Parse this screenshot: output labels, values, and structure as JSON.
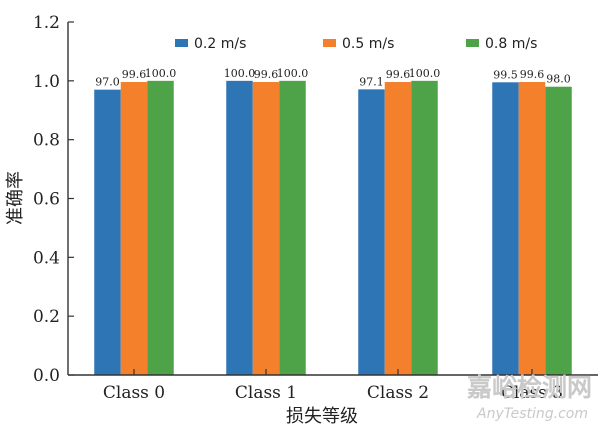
{
  "chart_data": {
    "type": "bar",
    "categories": [
      "Class 0",
      "Class 1",
      "Class 2",
      "Class 3"
    ],
    "series": [
      {
        "name": "0.2 m/s",
        "color": "#2e75b6",
        "values": [
          0.97,
          1.0,
          0.971,
          0.995
        ],
        "labels": [
          "97.0",
          "100.0",
          "97.1",
          "99.5"
        ]
      },
      {
        "name": "0.5 m/s",
        "color": "#f4802c",
        "values": [
          0.996,
          0.996,
          0.996,
          0.996
        ],
        "labels": [
          "99.6",
          "99.6",
          "99.6",
          "99.6"
        ]
      },
      {
        "name": "0.8 m/s",
        "color": "#4ea248",
        "values": [
          1.0,
          1.0,
          1.0,
          0.98
        ],
        "labels": [
          "100.0",
          "100.0",
          "100.0",
          "98.0"
        ]
      }
    ],
    "xlabel": "损失等级",
    "ylabel": "准确率",
    "ylim": [
      0,
      1.2
    ],
    "yticks": [
      "0.0",
      "0.2",
      "0.4",
      "0.6",
      "0.8",
      "1.0",
      "1.2"
    ],
    "grid": false,
    "legend_position": "top"
  },
  "watermark": {
    "cn": "嘉峪检测网",
    "en": "AnyTesting.com"
  }
}
